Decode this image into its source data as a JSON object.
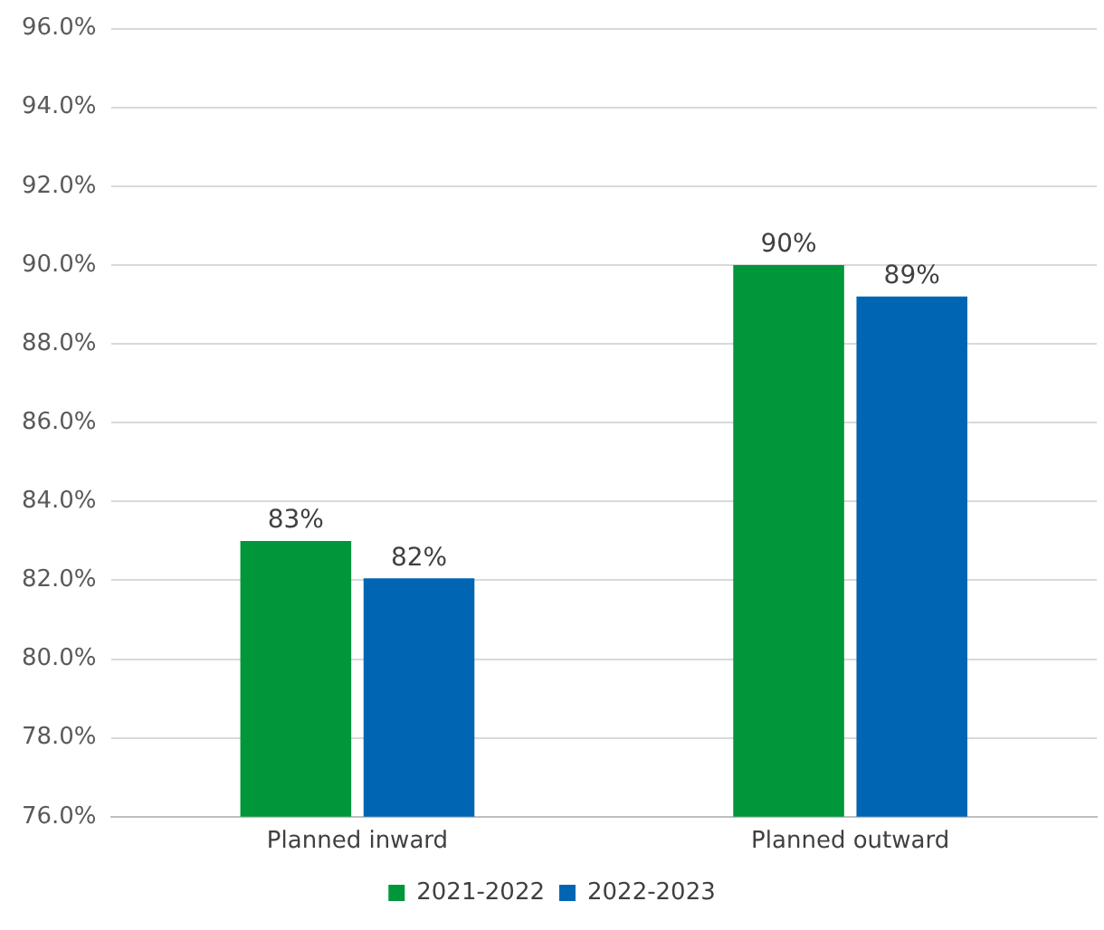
{
  "chart_data": {
    "type": "bar",
    "categories": [
      "Planned inward",
      "Planned outward"
    ],
    "series": [
      {
        "name": "2021-2022",
        "color": "#00973a",
        "values": [
          83,
          90
        ],
        "value_labels": [
          "83%",
          "90%"
        ]
      },
      {
        "name": "2022-2023",
        "color": "#0066b3",
        "values": [
          82.05,
          89.2
        ],
        "value_labels": [
          "82%",
          "89%"
        ]
      }
    ],
    "ylim": [
      76,
      96
    ],
    "yticks": [
      {
        "value": 76,
        "label": "76.0%"
      },
      {
        "value": 78,
        "label": "78.0%"
      },
      {
        "value": 80,
        "label": "80.0%"
      },
      {
        "value": 82,
        "label": "82.0%"
      },
      {
        "value": 84,
        "label": "84.0%"
      },
      {
        "value": 86,
        "label": "86.0%"
      },
      {
        "value": 88,
        "label": "88.0%"
      },
      {
        "value": 90,
        "label": "90.0%"
      },
      {
        "value": 92,
        "label": "92.0%"
      },
      {
        "value": 94,
        "label": "94.0%"
      },
      {
        "value": 96,
        "label": "96.0%"
      }
    ],
    "grid": "y",
    "legend": "bottom"
  }
}
